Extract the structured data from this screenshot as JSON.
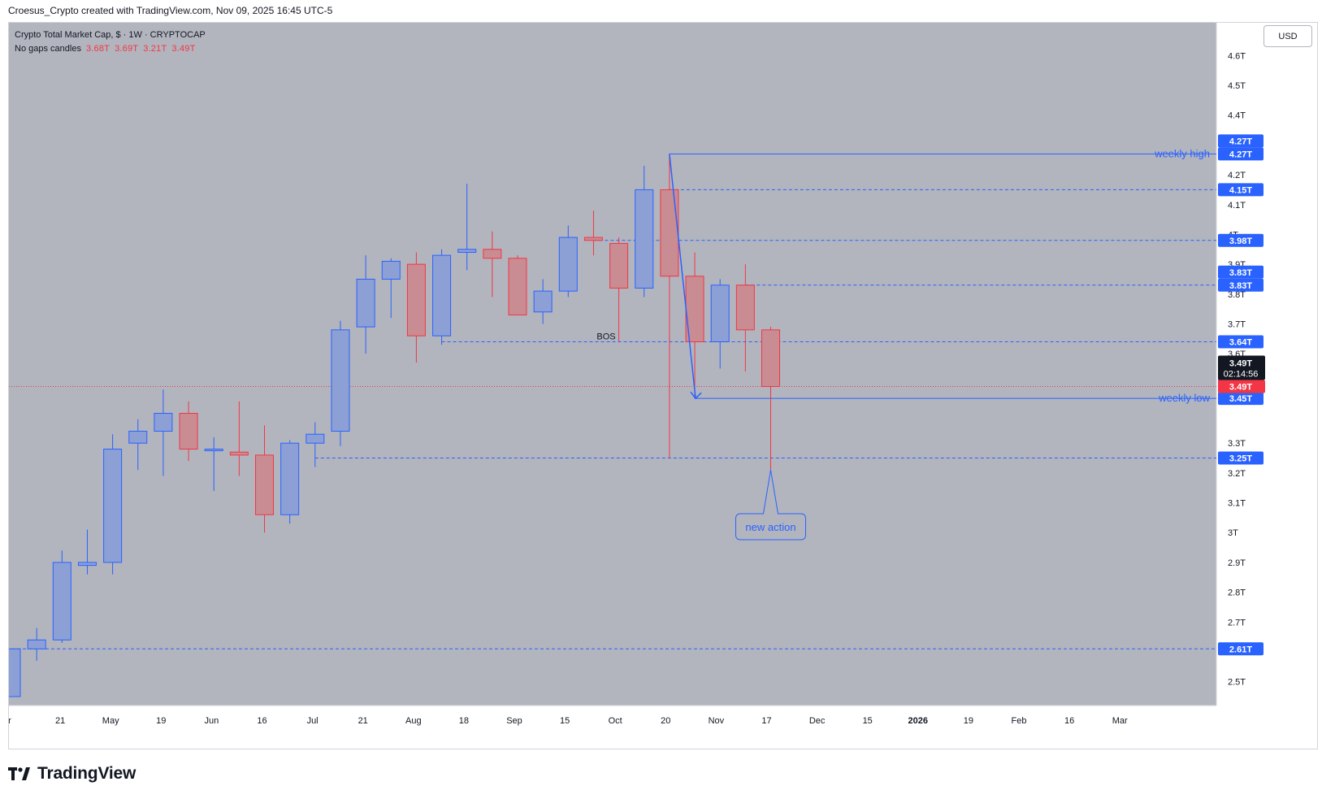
{
  "header": {
    "attribution": "Croesus_Crypto created with TradingView.com, Nov 09, 2025 16:45 UTC-5"
  },
  "legend": {
    "symbol_line": "Crypto Total Market Cap, $ · 1W · CRYPTOCAP",
    "indicator_name": "No gaps candles",
    "ohlc": [
      "3.68T",
      "3.69T",
      "3.21T",
      "3.49T"
    ]
  },
  "currency_button": "USD",
  "footer": {
    "brand": "TradingView"
  },
  "colors": {
    "background": "#b2b5be",
    "up_body": "#8da0d6",
    "up_border": "#2962ff",
    "down_body": "#c98c92",
    "down_border": "#f23645",
    "drawing": "#2962ff",
    "price_line": "#f23645"
  },
  "chart_data": {
    "type": "candlestick",
    "title": "Crypto Total Market Cap",
    "timeframe": "1W",
    "y_unit": "T",
    "ylim": [
      2.42,
      4.71
    ],
    "y_ticks": [
      "2.5T",
      "2.7T",
      "2.8T",
      "2.9T",
      "3T",
      "3.1T",
      "3.2T",
      "3.3T",
      "3.7T",
      "3.8T",
      "3.9T",
      "4T",
      "4.1T",
      "4.2T",
      "4.4T",
      "4.5T",
      "4.6T"
    ],
    "x_labels": [
      "r",
      "21",
      "May",
      "19",
      "Jun",
      "16",
      "Jul",
      "21",
      "Aug",
      "18",
      "Sep",
      "15",
      "Oct",
      "20",
      "Nov",
      "17",
      "Dec",
      "15",
      "2026",
      "19",
      "Feb",
      "16",
      "Mar"
    ],
    "candles": [
      {
        "o": 2.45,
        "h": 2.61,
        "l": 2.45,
        "c": 2.61
      },
      {
        "o": 2.61,
        "h": 2.68,
        "l": 2.57,
        "c": 2.64
      },
      {
        "o": 2.64,
        "h": 2.94,
        "l": 2.63,
        "c": 2.9
      },
      {
        "o": 2.89,
        "h": 3.01,
        "l": 2.86,
        "c": 2.9
      },
      {
        "o": 2.9,
        "h": 3.33,
        "l": 2.86,
        "c": 3.28
      },
      {
        "o": 3.3,
        "h": 3.38,
        "l": 3.21,
        "c": 3.34
      },
      {
        "o": 3.34,
        "h": 3.48,
        "l": 3.19,
        "c": 3.4
      },
      {
        "o": 3.4,
        "h": 3.44,
        "l": 3.24,
        "c": 3.28
      },
      {
        "o": 3.28,
        "h": 3.32,
        "l": 3.14,
        "c": 3.28
      },
      {
        "o": 3.27,
        "h": 3.44,
        "l": 3.19,
        "c": 3.26
      },
      {
        "o": 3.26,
        "h": 3.36,
        "l": 3.0,
        "c": 3.06
      },
      {
        "o": 3.06,
        "h": 3.31,
        "l": 3.03,
        "c": 3.3
      },
      {
        "o": 3.3,
        "h": 3.37,
        "l": 3.22,
        "c": 3.33
      },
      {
        "o": 3.34,
        "h": 3.71,
        "l": 3.29,
        "c": 3.68
      },
      {
        "o": 3.69,
        "h": 3.93,
        "l": 3.6,
        "c": 3.85
      },
      {
        "o": 3.85,
        "h": 3.92,
        "l": 3.72,
        "c": 3.91
      },
      {
        "o": 3.9,
        "h": 3.94,
        "l": 3.57,
        "c": 3.66
      },
      {
        "o": 3.66,
        "h": 3.95,
        "l": 3.63,
        "c": 3.93
      },
      {
        "o": 3.94,
        "h": 4.17,
        "l": 3.88,
        "c": 3.95
      },
      {
        "o": 3.95,
        "h": 4.01,
        "l": 3.79,
        "c": 3.92
      },
      {
        "o": 3.92,
        "h": 3.93,
        "l": 3.74,
        "c": 3.73
      },
      {
        "o": 3.74,
        "h": 3.85,
        "l": 3.7,
        "c": 3.81
      },
      {
        "o": 3.81,
        "h": 4.03,
        "l": 3.79,
        "c": 3.99
      },
      {
        "o": 3.99,
        "h": 4.08,
        "l": 3.93,
        "c": 3.98
      },
      {
        "o": 3.97,
        "h": 3.99,
        "l": 3.64,
        "c": 3.82
      },
      {
        "o": 3.82,
        "h": 4.23,
        "l": 3.79,
        "c": 4.15
      },
      {
        "o": 4.15,
        "h": 4.27,
        "l": 3.25,
        "c": 3.86
      },
      {
        "o": 3.86,
        "h": 3.94,
        "l": 3.45,
        "c": 3.64
      },
      {
        "o": 3.64,
        "h": 3.85,
        "l": 3.55,
        "c": 3.83
      },
      {
        "o": 3.83,
        "h": 3.9,
        "l": 3.54,
        "c": 3.68
      },
      {
        "o": 3.68,
        "h": 3.69,
        "l": 3.21,
        "c": 3.49
      }
    ],
    "levels": [
      {
        "value": 4.27,
        "label": "4.27T",
        "style": "solid",
        "start_index": 26,
        "annotation": "weekly high"
      },
      {
        "value": 4.15,
        "label": "4.15T",
        "style": "dashed",
        "start_index": 26
      },
      {
        "value": 3.98,
        "label": "3.98T",
        "style": "dashed",
        "start_index": 23
      },
      {
        "value": 3.83,
        "label": "3.83T",
        "style": "dashed",
        "start_index": 29
      },
      {
        "value": 3.64,
        "label": "3.64T",
        "style": "dashed",
        "start_index": 17,
        "annotation": "BOS"
      },
      {
        "value": 3.45,
        "label": "3.45T",
        "style": "solid",
        "start_index": 27,
        "annotation": "weekly low"
      },
      {
        "value": 3.25,
        "label": "3.25T",
        "style": "dashed",
        "start_index": 12
      },
      {
        "value": 2.61,
        "label": "2.61T",
        "style": "dashed",
        "start_index": 0
      }
    ],
    "extra_axis_badges": [
      "4.27T",
      "3.83T",
      "3.45T"
    ],
    "current_price": {
      "value": 3.49,
      "label": "3.49T",
      "countdown": "02:14:56"
    },
    "callout": {
      "text": "new action",
      "points_to": 3.21,
      "index": 30
    },
    "extra_tick_labels": [
      "3.6T"
    ]
  }
}
